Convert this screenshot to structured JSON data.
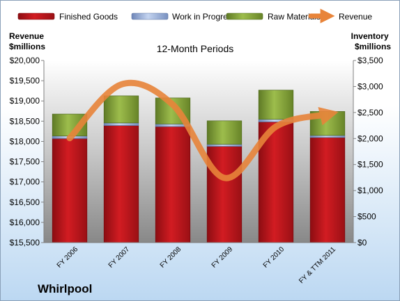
{
  "chart_data": {
    "type": "bar",
    "subtitle": "12-Month Periods",
    "company": "Whirlpool",
    "categories": [
      "FY 2006",
      "FY 2007",
      "FY 2008",
      "FY 2009",
      "FY 2010",
      "FY & TTM 2011"
    ],
    "series": [
      {
        "name": "Finished Goods",
        "axis": "right",
        "color": "#c0141a",
        "values": [
          2000,
          2250,
          2230,
          1850,
          2320,
          2020
        ]
      },
      {
        "name": "Work in Progress",
        "axis": "right",
        "color": "#9fb4de",
        "values": [
          50,
          50,
          50,
          40,
          50,
          40
        ]
      },
      {
        "name": "Raw Materials",
        "axis": "right",
        "color": "#86a43c",
        "values": [
          420,
          520,
          500,
          450,
          560,
          460
        ]
      },
      {
        "name": "Revenue",
        "axis": "left",
        "type": "line",
        "color": "#e8843a",
        "values": [
          18080,
          19408,
          18907,
          17099,
          18366,
          18666
        ]
      }
    ],
    "ylabel_left": "Revenue\n$millions",
    "ylabel_right": "Inventory\n$millions",
    "ylim_left": [
      15500,
      20000
    ],
    "ylim_right": [
      0,
      3500
    ],
    "yticks_left": [
      "$15,500",
      "$16,000",
      "$16,500",
      "$17,000",
      "$17,500",
      "$18,000",
      "$18,500",
      "$19,000",
      "$19,500",
      "$20,000"
    ],
    "yticks_right": [
      "$0",
      "$500",
      "$1,000",
      "$1,500",
      "$2,000",
      "$2,500",
      "$3,000",
      "$3,500"
    ],
    "grid": false,
    "legend": "top"
  }
}
